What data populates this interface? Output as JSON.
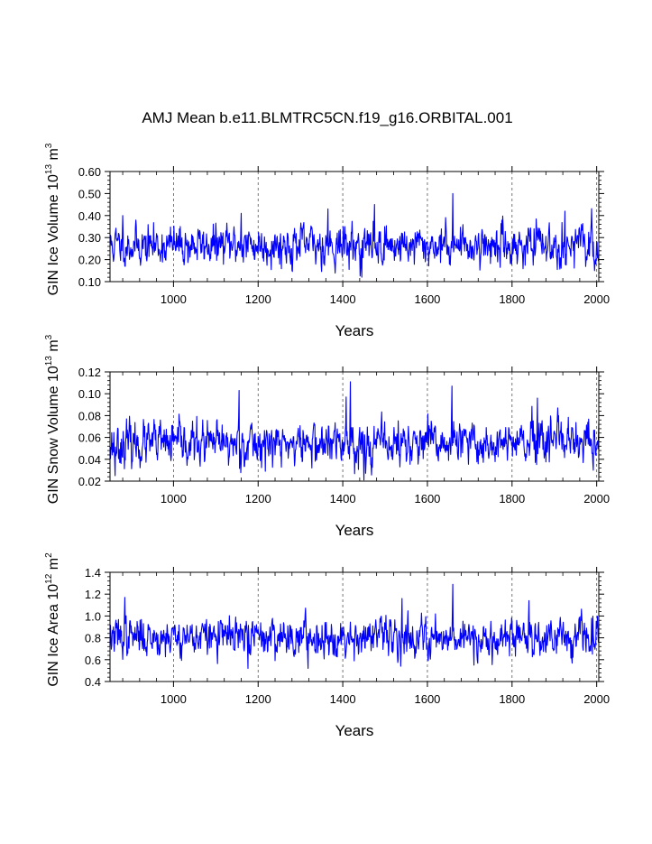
{
  "title": "AMJ Mean b.e11.BLMTRC5CN.f19_g16.ORBITAL.001",
  "colors": {
    "series": "#0000ff",
    "axes": "#000000",
    "grid": "#555555"
  },
  "chart_data": [
    {
      "type": "line",
      "series_name": "GIN Ice Volume",
      "ylabel": {
        "main": "GIN Ice Volume 10",
        "exp": "13",
        "unit": " m",
        "unit_exp": "3"
      },
      "xlabel": "Years",
      "xlim": [
        850,
        2005
      ],
      "ylim": [
        0.1,
        0.6
      ],
      "xticks": [
        1000,
        1200,
        1400,
        1600,
        1800,
        2000
      ],
      "xtick_labels": [
        "1000",
        "1200",
        "1400",
        "1600",
        "1800",
        "2000"
      ],
      "yticks": [
        0.1,
        0.2,
        0.3,
        0.4,
        0.5,
        0.6
      ],
      "ytick_labels": [
        "0.10",
        "0.20",
        "0.30",
        "0.40",
        "0.50",
        "0.60"
      ],
      "grid": "vertical-dashed-at-major-x-ticks",
      "series": {
        "x_start": 850,
        "x_step": 1,
        "mean": 0.265,
        "amplitude": 0.055,
        "seed": 11,
        "extremes": [
          {
            "x": 1660,
            "y": 0.5
          },
          {
            "x": 1475,
            "y": 0.45
          },
          {
            "x": 1365,
            "y": 0.43
          },
          {
            "x": 1445,
            "y": 0.12
          },
          {
            "x": 1160,
            "y": 0.41
          },
          {
            "x": 1925,
            "y": 0.42
          },
          {
            "x": 880,
            "y": 0.4
          },
          {
            "x": 1995,
            "y": 0.15
          }
        ]
      }
    },
    {
      "type": "line",
      "series_name": "GIN Snow Volume",
      "ylabel": {
        "main": "GIN Snow Volume 10",
        "exp": "13",
        "unit": " m",
        "unit_exp": "3"
      },
      "xlabel": "Years",
      "xlim": [
        850,
        2005
      ],
      "ylim": [
        0.02,
        0.12
      ],
      "xticks": [
        1000,
        1200,
        1400,
        1600,
        1800,
        2000
      ],
      "xtick_labels": [
        "1000",
        "1200",
        "1400",
        "1600",
        "1800",
        "2000"
      ],
      "yticks": [
        0.02,
        0.04,
        0.06,
        0.08,
        0.1,
        0.12
      ],
      "ytick_labels": [
        "0.02",
        "0.04",
        "0.06",
        "0.08",
        "0.10",
        "0.12"
      ],
      "grid": "vertical-dashed-at-major-x-ticks",
      "series": {
        "x_start": 850,
        "x_step": 1,
        "mean": 0.054,
        "amplitude": 0.012,
        "seed": 23,
        "extremes": [
          {
            "x": 1418,
            "y": 0.111
          },
          {
            "x": 1658,
            "y": 0.107
          },
          {
            "x": 1155,
            "y": 0.103
          },
          {
            "x": 1408,
            "y": 0.097
          },
          {
            "x": 1860,
            "y": 0.096
          },
          {
            "x": 1450,
            "y": 0.021
          },
          {
            "x": 862,
            "y": 0.025
          },
          {
            "x": 1992,
            "y": 0.03
          }
        ]
      }
    },
    {
      "type": "line",
      "series_name": "GIN Ice Area",
      "ylabel": {
        "main": "GIN Ice Area 10",
        "exp": "12",
        "unit": " m",
        "unit_exp": "2"
      },
      "xlabel": "Years",
      "xlim": [
        850,
        2005
      ],
      "ylim": [
        0.4,
        1.4
      ],
      "xticks": [
        1000,
        1200,
        1400,
        1600,
        1800,
        2000
      ],
      "xtick_labels": [
        "1000",
        "1200",
        "1400",
        "1600",
        "1800",
        "2000"
      ],
      "yticks": [
        0.4,
        0.6,
        0.8,
        1.0,
        1.2,
        1.4
      ],
      "ytick_labels": [
        "0.4",
        "0.6",
        "0.8",
        "1.0",
        "1.2",
        "1.4"
      ],
      "grid": "vertical-dashed-at-major-x-ticks",
      "series": {
        "x_start": 850,
        "x_step": 1,
        "mean": 0.81,
        "amplitude": 0.105,
        "seed": 37,
        "extremes": [
          {
            "x": 1660,
            "y": 1.29
          },
          {
            "x": 885,
            "y": 1.17
          },
          {
            "x": 1540,
            "y": 1.16
          },
          {
            "x": 1840,
            "y": 1.14
          },
          {
            "x": 1318,
            "y": 0.52
          },
          {
            "x": 1176,
            "y": 0.52
          },
          {
            "x": 1710,
            "y": 0.55
          },
          {
            "x": 1990,
            "y": 0.65
          }
        ]
      }
    }
  ]
}
